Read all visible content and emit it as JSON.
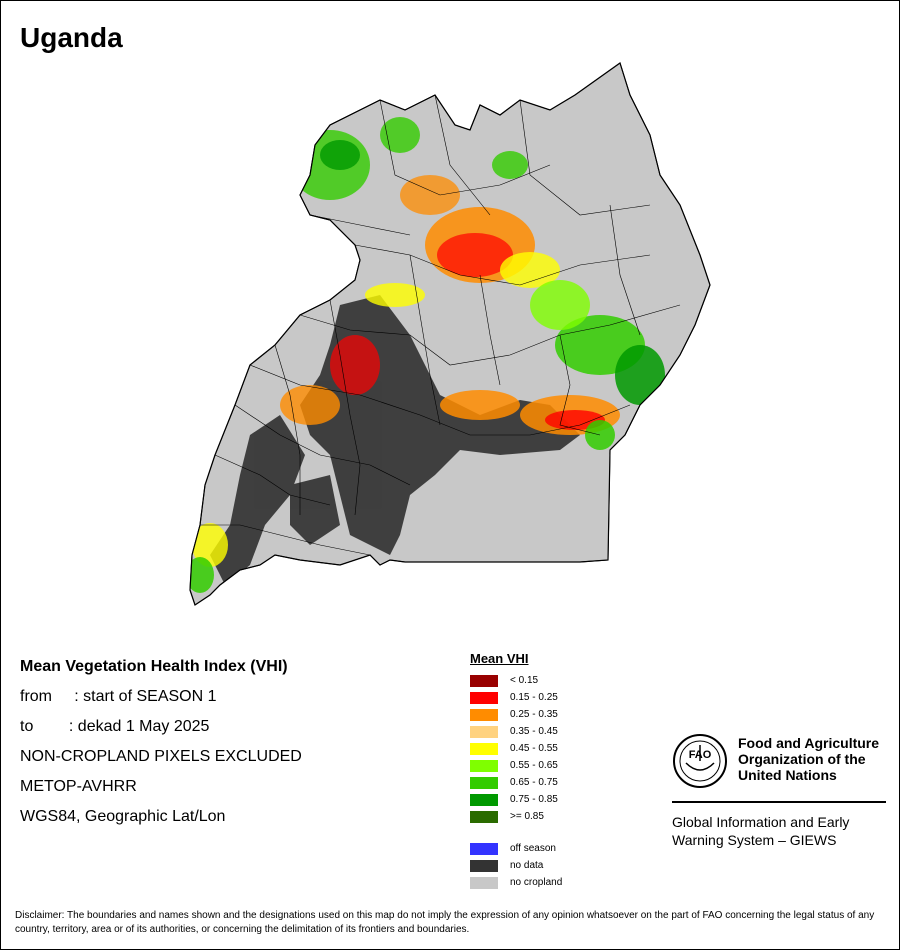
{
  "title": "Uganda",
  "info": {
    "heading": "Mean Vegetation Health Index (VHI)",
    "from": "from     : start of SEASON 1",
    "to": "to        : dekad 1 May 2025",
    "exclusion": "NON-CROPLAND PIXELS EXCLUDED",
    "sensor": "METOP-AVHRR",
    "projection": "WGS84, Geographic Lat/Lon"
  },
  "legend": {
    "title": "Mean VHI",
    "classes": [
      {
        "label": "< 0.15",
        "color": "#990000"
      },
      {
        "label": "0.15 - 0.25",
        "color": "#ff0000"
      },
      {
        "label": "0.25 - 0.35",
        "color": "#ff8c00"
      },
      {
        "label": "0.35 - 0.45",
        "color": "#ffd27f"
      },
      {
        "label": "0.45 - 0.55",
        "color": "#ffff00"
      },
      {
        "label": "0.55 - 0.65",
        "color": "#7fff00"
      },
      {
        "label": "0.65 - 0.75",
        "color": "#33cc00"
      },
      {
        "label": "0.75 - 0.85",
        "color": "#009900"
      },
      {
        "label": ">= 0.85",
        "color": "#2a6b00"
      }
    ],
    "special": [
      {
        "label": "off season",
        "color": "#3333ff"
      },
      {
        "label": "no data",
        "color": "#333333"
      },
      {
        "label": "no cropland",
        "color": "#c8c8c8"
      }
    ]
  },
  "fao": {
    "name_line1": "Food and Agriculture",
    "name_line2": "Organization of the",
    "name_line3": "United Nations",
    "emblem_text": "FAO",
    "giews_line1": "Global Information and Early",
    "giews_line2": "Warning System – GIEWS"
  },
  "disclaimer": "Disclaimer: The boundaries and names shown and the designations used on this map do not imply the expression of any opinion whatsoever on the part of FAO concerning the legal status of any country, territory, area or of its authorities, or concerning the delimitation of its frontiers and boundaries."
}
